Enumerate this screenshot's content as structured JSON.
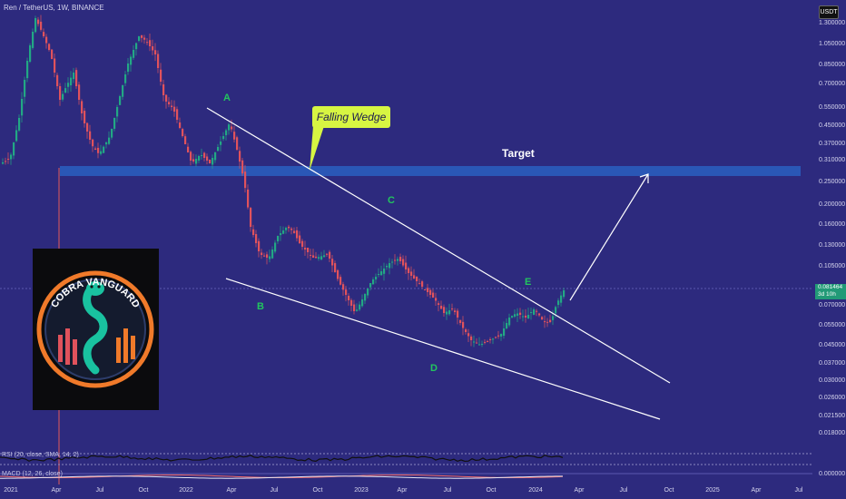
{
  "header": {
    "symbol_line": "Ren / TetherUS, 1W, BINANCE"
  },
  "currency_badge": "USDT",
  "price_badge": {
    "price": "0.081464",
    "countdown": "3d 10h"
  },
  "price_axis": [
    "1.300000",
    "1.050000",
    "0.850000",
    "0.700000",
    "0.550000",
    "0.450000",
    "0.370000",
    "0.310000",
    "0.250000",
    "0.200000",
    "0.160000",
    "0.130000",
    "0.105000",
    "0.070000",
    "0.055000",
    "0.045000",
    "0.037000",
    "0.030000",
    "0.026000",
    "0.021500",
    "0.018000",
    "0.000000"
  ],
  "time_axis": [
    "2021",
    "Apr",
    "Jul",
    "Oct",
    "2022",
    "Apr",
    "Jul",
    "Oct",
    "2023",
    "Apr",
    "Jul",
    "Oct",
    "2024",
    "Apr",
    "Jul",
    "Oct",
    "2025",
    "Apr",
    "Jul"
  ],
  "wave_labels": [
    "A",
    "B",
    "C",
    "D",
    "E"
  ],
  "callout": "Falling Wedge",
  "target_label": "Target",
  "logo": {
    "text": "COBRA VANGUARD"
  },
  "indicators": {
    "rsi_label": "RSI (20, close, SMA, 14, 2)",
    "macd_label": "MACD (12, 26, close)"
  },
  "colors": {
    "background": "#2d2a7e",
    "up": "#22a884",
    "down": "#e0525c",
    "target_band": "#2a5fbf",
    "callout": "#d7f542",
    "wave_label": "#22c55e"
  }
}
